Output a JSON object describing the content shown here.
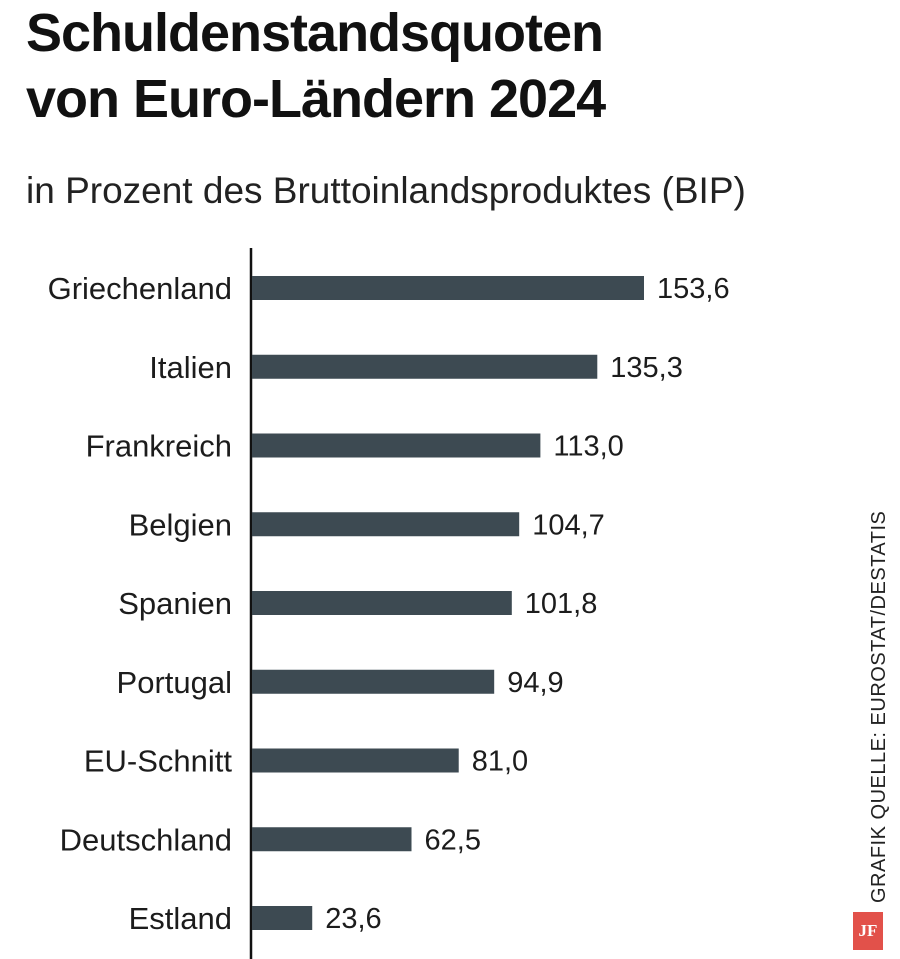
{
  "header": {
    "title_line1": "Schuldenstandsquoten",
    "title_line2": "von Euro-Ländern 2024",
    "subtitle": "in Prozent des Bruttoinlandsproduktes (BIP)"
  },
  "source": {
    "text": "GRAFIK  QUELLE: EUROSTAT/DESTATIS",
    "logo": "JF"
  },
  "colors": {
    "bar": "#3d4a52",
    "logo": "#e2514a"
  },
  "chart_data": {
    "type": "bar",
    "orientation": "horizontal",
    "title": "Schuldenstandsquoten von Euro-Ländern 2024",
    "subtitle": "in Prozent des Bruttoinlandsproduktes (BIP)",
    "xlabel": "",
    "ylabel": "",
    "xlim": [
      0,
      160
    ],
    "grid": false,
    "categories": [
      "Griechenland",
      "Italien",
      "Frankreich",
      "Belgien",
      "Spanien",
      "Portugal",
      "EU-Schnitt",
      "Deutschland",
      "Estland"
    ],
    "values": [
      153.6,
      135.3,
      113.0,
      104.7,
      101.8,
      94.9,
      81.0,
      62.5,
      23.6
    ],
    "value_labels": [
      "153,6",
      "135,3",
      "113,0",
      "104,7",
      "101,8",
      "94,9",
      "81,0",
      "62,5",
      "23,6"
    ]
  }
}
